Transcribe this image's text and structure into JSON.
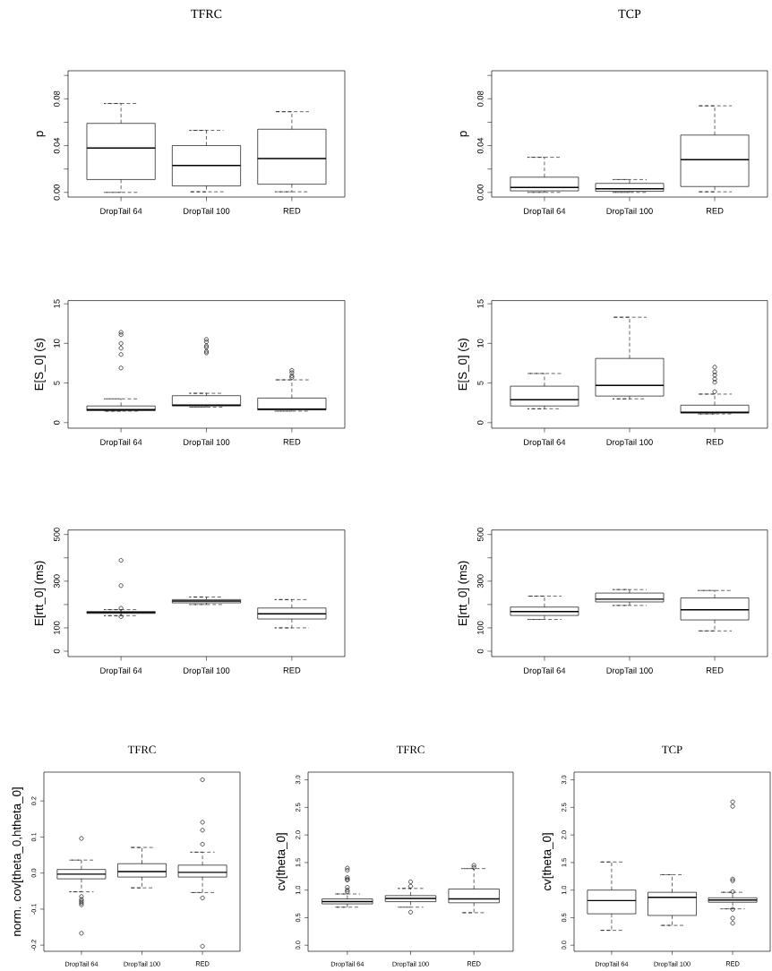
{
  "chart_data": [
    {
      "type": "box",
      "title": "TFRC",
      "ylabel": "p",
      "categories": [
        "DropTail 64",
        "DropTail 100",
        "RED"
      ],
      "ylim": [
        -0.004,
        0.104
      ],
      "yticks": [
        {
          "value": 0,
          "label": "0.00"
        },
        {
          "value": 0.02,
          "label": null
        },
        0.04,
        {
          "value": 0.06,
          "label": null
        },
        0.08,
        {
          "value": 0.1,
          "label": null
        }
      ],
      "boxes": [
        {
          "low": 0.0,
          "q1": 0.011,
          "median": 0.038,
          "q3": 0.059,
          "high": 0.076
        },
        {
          "low": 0.0005,
          "q1": 0.0055,
          "median": 0.023,
          "q3": 0.04,
          "high": 0.053
        },
        {
          "low": 0.0005,
          "q1": 0.007,
          "median": 0.029,
          "q3": 0.054,
          "high": 0.069
        }
      ]
    },
    {
      "type": "box",
      "title": "TCP",
      "ylabel": "p",
      "categories": [
        "DropTail 64",
        "DropTail 100",
        "RED"
      ],
      "ylim": [
        -0.004,
        0.104
      ],
      "yticks": [
        {
          "value": 0,
          "label": "0.00"
        },
        {
          "value": 0.02,
          "label": null
        },
        0.04,
        {
          "value": 0.06,
          "label": null
        },
        0.08,
        {
          "value": 0.1,
          "label": null
        }
      ],
      "boxes": [
        {
          "low": 0.0,
          "q1": 0.0013,
          "median": 0.0043,
          "q3": 0.013,
          "high": 0.03
        },
        {
          "low": 0.0,
          "q1": 0.0009,
          "median": 0.003,
          "q3": 0.0077,
          "high": 0.011
        },
        {
          "low": 0.0005,
          "q1": 0.005,
          "median": 0.028,
          "q3": 0.049,
          "high": 0.074
        }
      ]
    },
    {
      "type": "box",
      "ylabel": "E[S_0] (s)",
      "categories": [
        "DropTail 64",
        "DropTail 100",
        "RED"
      ],
      "ylim": [
        -0.7,
        15.4
      ],
      "yticks": [
        0,
        5,
        10,
        15
      ],
      "boxes": [
        {
          "low": 1.45,
          "q1": 1.5,
          "median": 1.65,
          "q3": 2.1,
          "high": 3.0,
          "outliers": [
            11.4,
            11.1,
            10.0,
            9.4,
            8.6,
            6.9
          ]
        },
        {
          "low": 1.95,
          "q1": 2.1,
          "median": 2.2,
          "q3": 3.4,
          "high": 3.7,
          "outliers": [
            10.5,
            10.2,
            9.7,
            9.5,
            9.0,
            8.8
          ]
        },
        {
          "low": 1.45,
          "q1": 1.6,
          "median": 1.7,
          "q3": 3.1,
          "high": 5.4,
          "outliers": [
            6.6,
            6.3,
            5.9,
            5.7
          ]
        }
      ]
    },
    {
      "type": "box",
      "ylabel": "E[S_0] (s)",
      "categories": [
        "DropTail 64",
        "DropTail 100",
        "RED"
      ],
      "ylim": [
        -0.7,
        15.4
      ],
      "yticks": [
        0,
        5,
        10,
        15
      ],
      "boxes": [
        {
          "low": 1.75,
          "q1": 2.1,
          "median": 2.9,
          "q3": 4.6,
          "high": 6.2
        },
        {
          "low": 3.0,
          "q1": 3.35,
          "median": 4.7,
          "q3": 8.1,
          "high": 13.3
        },
        {
          "low": 1.1,
          "q1": 1.2,
          "median": 1.3,
          "q3": 2.2,
          "high": 3.6,
          "outliers": [
            7.0,
            6.4,
            6.0,
            5.5,
            5.1,
            3.9
          ]
        }
      ]
    },
    {
      "type": "box",
      "ylabel": "E[rtt_0] (ms)",
      "categories": [
        "DropTail 64",
        "DropTail 100",
        "RED"
      ],
      "ylim": [
        -23,
        519
      ],
      "yticks": [
        0,
        100,
        {
          "value": 200,
          "label": null
        },
        300,
        {
          "value": 400,
          "label": null
        },
        500
      ],
      "boxes": [
        {
          "low": 152,
          "q1": 162,
          "median": 166,
          "q3": 170,
          "high": 178,
          "outliers": [
            389,
            281,
            184,
            148
          ]
        },
        {
          "low": 200,
          "q1": 207,
          "median": 215,
          "q3": 221,
          "high": 232
        },
        {
          "low": 100,
          "q1": 138,
          "median": 160,
          "q3": 185,
          "high": 221
        }
      ]
    },
    {
      "type": "box",
      "ylabel": "E[rtt_0] (ms)",
      "categories": [
        "DropTail 64",
        "DropTail 100",
        "RED"
      ],
      "ylim": [
        -23,
        519
      ],
      "yticks": [
        0,
        100,
        {
          "value": 200,
          "label": null
        },
        300,
        {
          "value": 400,
          "label": null
        },
        500
      ],
      "boxes": [
        {
          "low": 136,
          "q1": 153,
          "median": 170,
          "q3": 189,
          "high": 236
        },
        {
          "low": 196,
          "q1": 211,
          "median": 223,
          "q3": 249,
          "high": 264
        },
        {
          "low": 87,
          "q1": 134,
          "median": 177,
          "q3": 228,
          "high": 260
        }
      ]
    },
    {
      "type": "box",
      "title": "TFRC",
      "ylabel": "norm. cov[theta_0,htheta_0]",
      "categories": [
        "DropTail 64",
        "DropTail 100",
        "RED"
      ],
      "ylim": [
        -0.217,
        0.28
      ],
      "yticks": [
        -0.2,
        -0.1,
        {
          "value": 0,
          "label": "0.0"
        },
        0.1,
        0.2
      ],
      "boxes": [
        {
          "low": -0.052,
          "q1": -0.016,
          "median": -0.003,
          "q3": 0.01,
          "high": 0.036,
          "outliers": [
            0.096,
            -0.065,
            -0.073,
            -0.078,
            -0.083,
            -0.088,
            -0.167
          ]
        },
        {
          "low": -0.041,
          "q1": -0.011,
          "median": 0.004,
          "q3": 0.026,
          "high": 0.071
        },
        {
          "low": -0.054,
          "q1": -0.011,
          "median": 0.002,
          "q3": 0.022,
          "high": 0.058,
          "outliers": [
            0.259,
            0.141,
            0.119,
            0.08,
            -0.069,
            -0.203
          ]
        }
      ]
    },
    {
      "type": "box",
      "title": "TFRC",
      "ylabel": "cv[theta_0]",
      "categories": [
        "DropTail 64",
        "DropTail 100",
        "RED"
      ],
      "ylim": [
        -0.11,
        3.14
      ],
      "yticks": [
        {
          "value": 0,
          "label": "0.0"
        },
        0.5,
        {
          "value": 1,
          "label": "1.0"
        },
        1.5,
        {
          "value": 2,
          "label": "2.0"
        },
        2.5,
        {
          "value": 3,
          "label": "3.0"
        }
      ],
      "boxes": [
        {
          "low": 0.69,
          "q1": 0.75,
          "median": 0.79,
          "q3": 0.84,
          "high": 0.93,
          "outliers": [
            1.4,
            1.36,
            1.23,
            1.2,
            1.18,
            1.05,
            1.0,
            0.97
          ]
        },
        {
          "low": 0.69,
          "q1": 0.79,
          "median": 0.85,
          "q3": 0.9,
          "high": 1.03,
          "outliers": [
            0.6,
            1.07,
            1.15
          ]
        },
        {
          "low": 0.59,
          "q1": 0.77,
          "median": 0.84,
          "q3": 1.02,
          "high": 1.39,
          "outliers": [
            1.41,
            1.45
          ]
        }
      ]
    },
    {
      "type": "box",
      "title": "TCP",
      "ylabel": "cv[theta_0]",
      "categories": [
        "DropTail 64",
        "DropTail 100",
        "RED"
      ],
      "ylim": [
        -0.11,
        3.14
      ],
      "yticks": [
        {
          "value": 0,
          "label": "0.0"
        },
        0.5,
        {
          "value": 1,
          "label": "1.0"
        },
        1.5,
        {
          "value": 2,
          "label": "2.0"
        },
        2.5,
        {
          "value": 3,
          "label": "3.0"
        }
      ],
      "boxes": [
        {
          "low": 0.27,
          "q1": 0.57,
          "median": 0.81,
          "q3": 1.0,
          "high": 1.51
        },
        {
          "low": 0.36,
          "q1": 0.54,
          "median": 0.87,
          "q3": 0.96,
          "high": 1.28
        },
        {
          "low": 0.66,
          "q1": 0.78,
          "median": 0.82,
          "q3": 0.86,
          "high": 0.96,
          "outliers": [
            2.6,
            2.52,
            1.2,
            1.17,
            0.97,
            0.65,
            0.49,
            0.4
          ]
        }
      ]
    }
  ]
}
